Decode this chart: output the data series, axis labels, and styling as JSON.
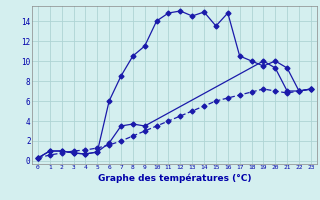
{
  "xlabel": "Graphe des températures (°C)",
  "background_color": "#d4efef",
  "grid_color": "#aed4d4",
  "line_color": "#1a1aaa",
  "xlim": [
    -0.5,
    23.5
  ],
  "ylim": [
    -0.3,
    15.5
  ],
  "xticks": [
    0,
    1,
    2,
    3,
    4,
    5,
    6,
    7,
    8,
    9,
    10,
    11,
    12,
    13,
    14,
    15,
    16,
    17,
    18,
    19,
    20,
    21,
    22,
    23
  ],
  "yticks": [
    0,
    2,
    4,
    6,
    8,
    10,
    12,
    14
  ],
  "line1_x": [
    0,
    1,
    2,
    3,
    4,
    5,
    6,
    7,
    8,
    9,
    10,
    11,
    12,
    13,
    14,
    15,
    16,
    17,
    18,
    19,
    20,
    21,
    22,
    23
  ],
  "line1_y": [
    0.3,
    1.0,
    1.0,
    0.8,
    0.7,
    0.9,
    6.0,
    8.5,
    10.5,
    11.5,
    14.0,
    14.8,
    15.0,
    14.5,
    14.9,
    13.5,
    14.8,
    10.5,
    10.0,
    9.5,
    10.0,
    9.3,
    7.0,
    7.2
  ],
  "line2_x": [
    0,
    1,
    2,
    3,
    4,
    5,
    6,
    7,
    8,
    9,
    19,
    20,
    21,
    22,
    23
  ],
  "line2_y": [
    0.3,
    1.0,
    1.0,
    0.8,
    0.7,
    0.9,
    1.8,
    3.5,
    3.7,
    3.5,
    10.0,
    9.3,
    7.0,
    7.0,
    7.2
  ],
  "line3_x": [
    0,
    1,
    2,
    3,
    4,
    5,
    6,
    7,
    8,
    9,
    10,
    11,
    12,
    13,
    14,
    15,
    16,
    17,
    18,
    19,
    20,
    21,
    22,
    23
  ],
  "line3_y": [
    0.3,
    0.6,
    0.8,
    1.0,
    1.1,
    1.3,
    1.6,
    2.0,
    2.5,
    3.0,
    3.5,
    4.0,
    4.5,
    5.0,
    5.5,
    6.0,
    6.3,
    6.6,
    6.9,
    7.2,
    7.0,
    6.8,
    7.0,
    7.2
  ]
}
